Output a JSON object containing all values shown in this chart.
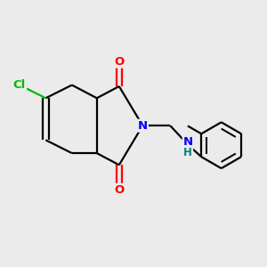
{
  "background_color": "#ebebeb",
  "bond_color": "#000000",
  "bond_lw": 1.6,
  "atom_colors": {
    "N": "#0000ff",
    "O": "#ff0000",
    "Cl": "#00bb00",
    "H": "#008080"
  },
  "font_size": 9.5
}
